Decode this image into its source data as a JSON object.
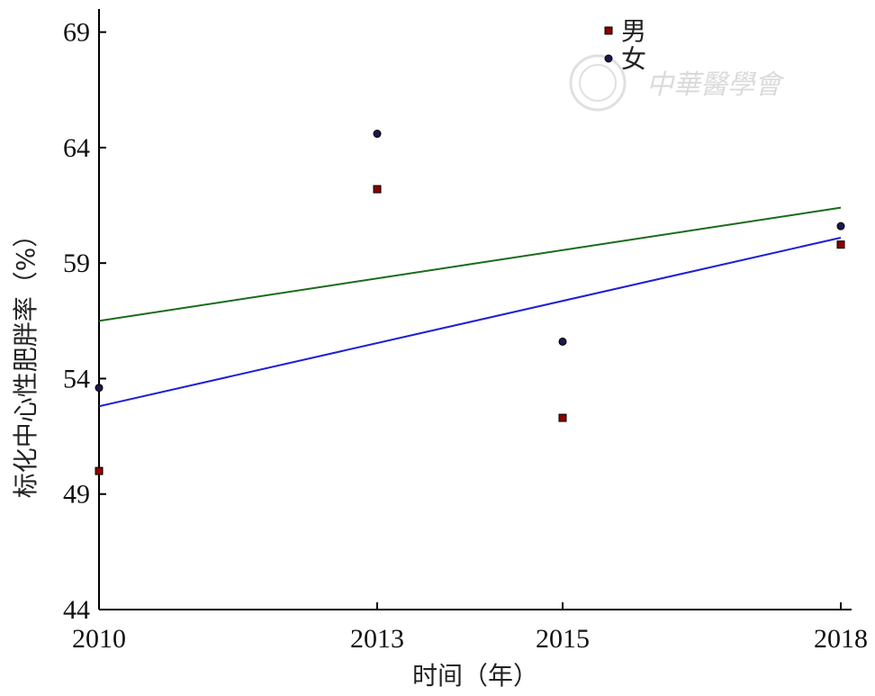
{
  "chart_data": {
    "type": "scatter",
    "xlabel": "时间（年）",
    "ylabel": "标化中心性肥胖率（%）",
    "xlim": [
      2010,
      2018
    ],
    "ylim": [
      44,
      70
    ],
    "x_ticks": [
      2010,
      2013,
      2015,
      2018
    ],
    "y_ticks": [
      44,
      49,
      54,
      59,
      64,
      69
    ],
    "x_tick_labels": [
      "2010",
      "2013",
      "2015",
      "2018"
    ],
    "y_tick_labels": [
      "44",
      "49",
      "54",
      "59",
      "64",
      "69"
    ],
    "legend_position": "top-center",
    "grid": false,
    "series": [
      {
        "name": "男",
        "marker": "square",
        "color": "#8b0000",
        "points": [
          {
            "x": 2010,
            "y": 50.0
          },
          {
            "x": 2013,
            "y": 62.2
          },
          {
            "x": 2015,
            "y": 52.3
          },
          {
            "x": 2018,
            "y": 59.8
          }
        ],
        "trend": {
          "x": [
            2010,
            2018
          ],
          "y": [
            52.8,
            60.1
          ],
          "color": "#1f1fd6"
        }
      },
      {
        "name": "女",
        "marker": "circle",
        "color": "#1a1a4a",
        "points": [
          {
            "x": 2010,
            "y": 53.6
          },
          {
            "x": 2013,
            "y": 64.6
          },
          {
            "x": 2015,
            "y": 55.6
          },
          {
            "x": 2018,
            "y": 60.6
          }
        ],
        "trend": {
          "x": [
            2010,
            2018
          ],
          "y": [
            56.5,
            61.4
          ],
          "color": "#1a6b1a"
        }
      }
    ]
  },
  "watermark": {
    "text": "中華醫學會"
  }
}
